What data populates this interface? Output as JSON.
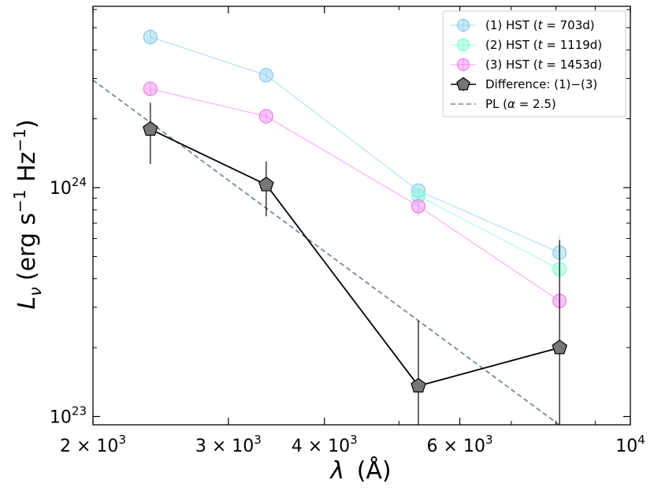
{
  "chart_data": {
    "type": "line",
    "xscale": "log",
    "yscale": "log",
    "xlim": [
      2000,
      10000
    ],
    "ylim": [
      9.2e+22,
      6.2e+24
    ],
    "xlabel_main": "λ",
    "xlabel_unit": "(Å)",
    "ylabel_main": "L",
    "ylabel_sub": "ν",
    "ylabel_unit_a": "(erg s",
    "ylabel_unit_sup1": "−1",
    "ylabel_unit_b": " Hz",
    "ylabel_unit_sup2": "−1",
    "ylabel_unit_c": ")",
    "x_ticks": [
      {
        "value": 2000,
        "mantissa": "2 × 10",
        "exp": "3"
      },
      {
        "value": 3000,
        "mantissa": "3 × 10",
        "exp": "3"
      },
      {
        "value": 4000,
        "mantissa": "4 × 10",
        "exp": "3"
      },
      {
        "value": 6000,
        "mantissa": "6 × 10",
        "exp": "3"
      },
      {
        "value": 10000,
        "mantissa": "10",
        "exp": "4"
      }
    ],
    "y_ticks": [
      {
        "value": 1e+23,
        "mantissa": "10",
        "exp": "23"
      },
      {
        "value": 1e+24,
        "mantissa": "10",
        "exp": "24"
      }
    ],
    "series": [
      {
        "name": "(1) HST (t = 703d)",
        "label_pre": "(1) HST (",
        "label_var": "t",
        "label_post": " = 703d)",
        "color": "#87ceeb",
        "marker": "circle",
        "x": [
          2375,
          3360,
          5300,
          8090
        ],
        "y": [
          4.55e+24,
          3.1e+24,
          9.7e+23,
          5.2e+23
        ],
        "yerr_low": [
          4.2e+24,
          2.95e+24,
          9.4e+23,
          5e+23
        ],
        "yerr_high": [
          4.95e+24,
          3.25e+24,
          1e+24,
          6.2e+23
        ]
      },
      {
        "name": "(2) HST (t = 1119d)",
        "label_pre": "(2) HST (",
        "label_var": "t",
        "label_post": " = 1119d)",
        "color": "#7fffd4",
        "marker": "circle",
        "x": [
          5300,
          8090
        ],
        "y": [
          9.2e+23,
          4.4e+23
        ],
        "yerr_low": [
          9e+23,
          4.2e+23
        ],
        "yerr_high": [
          9.4e+23,
          4.6e+23
        ]
      },
      {
        "name": "(3) HST (t = 1453d)",
        "label_pre": "(3) HST (",
        "label_var": "t",
        "label_post": " = 1453d)",
        "color": "#ee82ee",
        "marker": "circle",
        "x": [
          2375,
          3360,
          5300,
          8090
        ],
        "y": [
          2.7e+24,
          2.05e+24,
          8.3e+23,
          3.2e+23
        ],
        "yerr_low": [
          2.55e+24,
          1.95e+24,
          7.5e+23,
          2.6e+23
        ],
        "yerr_high": [
          2.85e+24,
          2.15e+24,
          9e+23,
          3.8e+23
        ]
      },
      {
        "name": "Difference: (1)−(3)",
        "label_pre": "Difference: (1)−(3)",
        "label_var": "",
        "label_post": "",
        "color": "#000000",
        "marker": "pentagon",
        "x": [
          2375,
          3360,
          5300,
          8090
        ],
        "y": [
          1.8e+24,
          1.03e+24,
          1.36e+23,
          2e+23
        ],
        "yerr_low": [
          1.27e+24,
          7.5e+23,
          9e+22,
          9e+22
        ],
        "yerr_high": [
          2.35e+24,
          1.3e+24,
          2.62e+23,
          5.9e+23
        ]
      },
      {
        "name": "PL (α = 2.5)",
        "label_pre": "PL (",
        "label_var": "α",
        "label_post": " = 2.5)",
        "color": "#778899",
        "marker": "none",
        "style": "dashed",
        "x": [
          2000,
          8090
        ],
        "y": [
          2.95e+24,
          9.17e+22
        ]
      }
    ]
  }
}
